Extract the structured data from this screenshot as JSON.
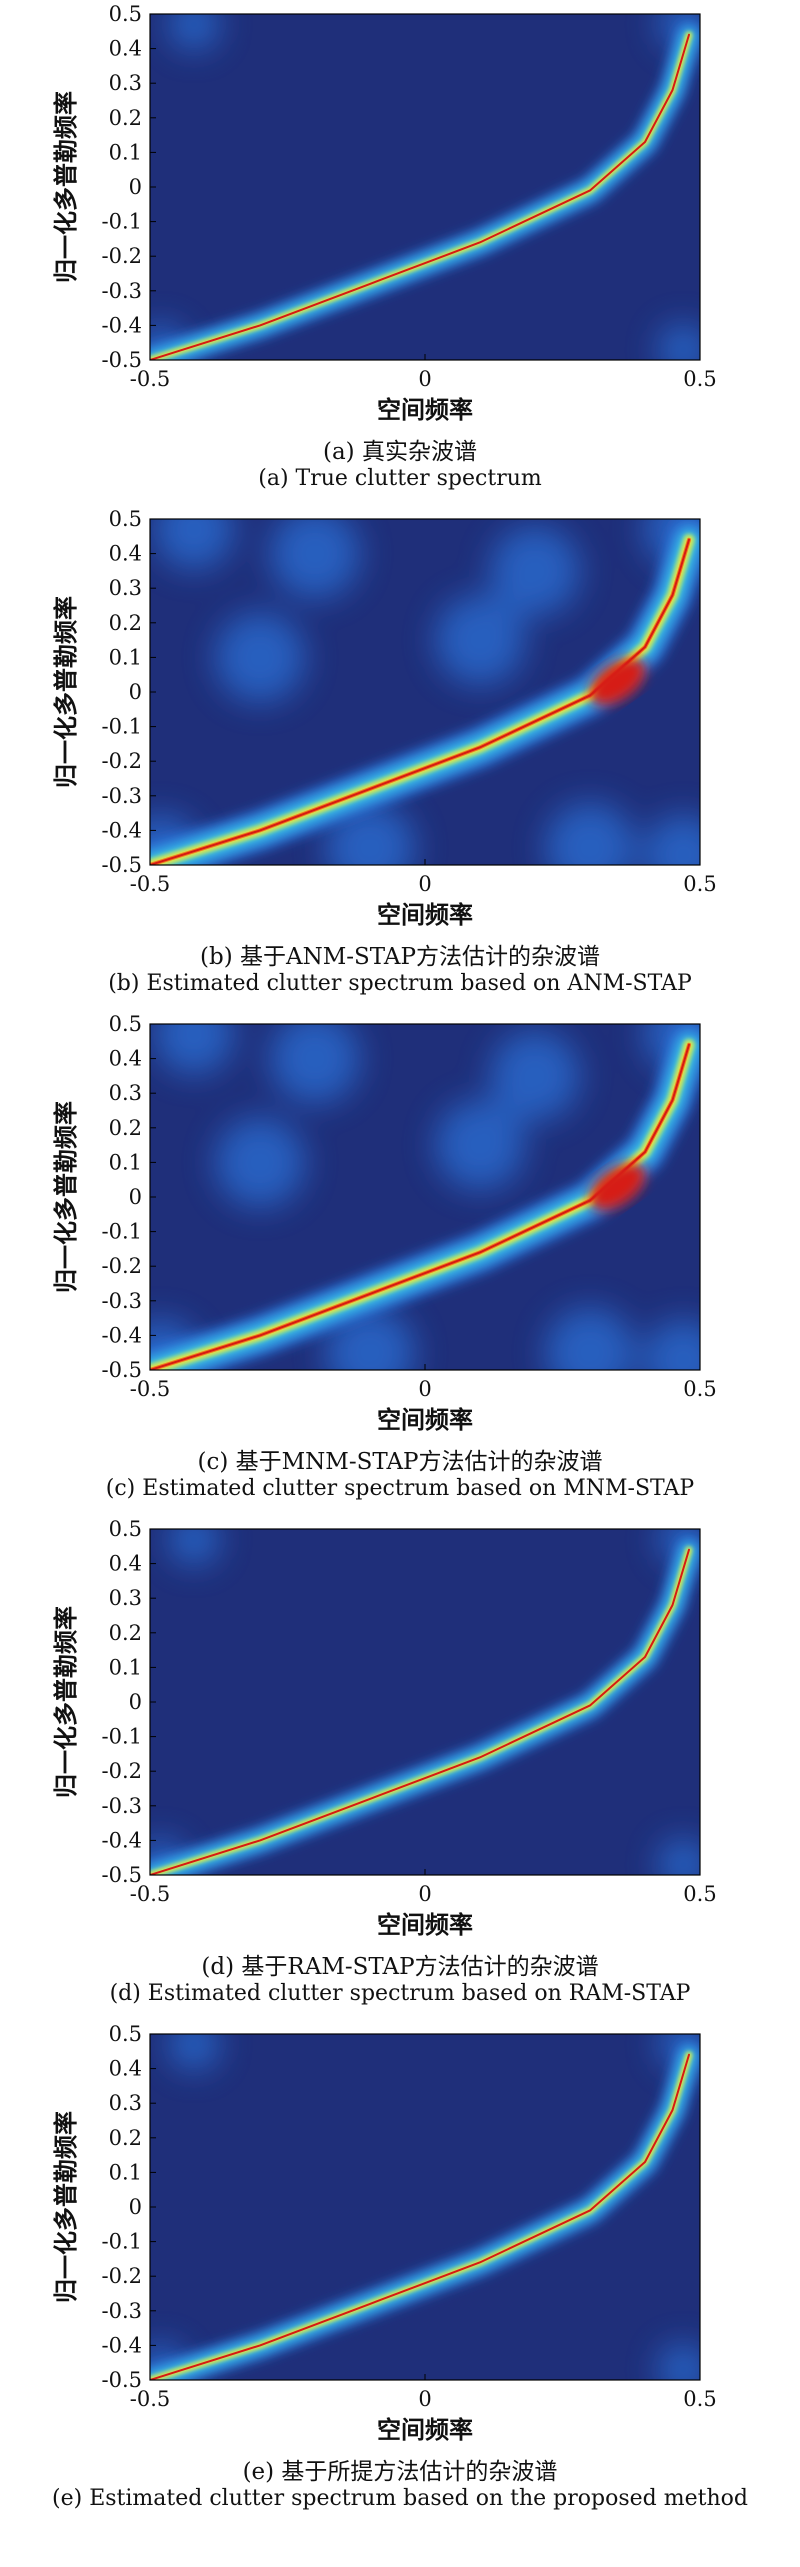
{
  "chart_data": [
    {
      "type": "heatmap",
      "panel_id": "a",
      "xlabel": "空间频率",
      "ylabel": "归一化多普勒频率",
      "xlim": [
        -0.5,
        0.5
      ],
      "ylim": [
        -0.5,
        0.5
      ],
      "x_ticks": [
        "-0.5",
        "0",
        "0.5"
      ],
      "y_ticks": [
        "0.5",
        "0.4",
        "0.3",
        "0.2",
        "0.1",
        "0",
        "-0.1",
        "-0.2",
        "-0.3",
        "-0.4",
        "-0.5"
      ],
      "caption_cn": "(a) 真实杂波谱",
      "caption_en": "(a) True clutter spectrum",
      "colormap": [
        "#1f2f7a",
        "#2a6fd6",
        "#39c6e8",
        "#8fe08a",
        "#f2e23c",
        "#f07a1e",
        "#d61a12"
      ],
      "ridge": [
        [
          -0.5,
          -0.5
        ],
        [
          -0.3,
          -0.4
        ],
        [
          -0.1,
          -0.28
        ],
        [
          0.1,
          -0.16
        ],
        [
          0.3,
          -0.01
        ],
        [
          0.4,
          0.13
        ],
        [
          0.45,
          0.28
        ],
        [
          0.48,
          0.44
        ]
      ],
      "ridge_intensity": "narrow"
    },
    {
      "type": "heatmap",
      "panel_id": "b",
      "xlabel": "空间频率",
      "ylabel": "归一化多普勒频率",
      "xlim": [
        -0.5,
        0.5
      ],
      "ylim": [
        -0.5,
        0.5
      ],
      "x_ticks": [
        "-0.5",
        "0",
        "0.5"
      ],
      "y_ticks": [
        "0.5",
        "0.4",
        "0.3",
        "0.2",
        "0.1",
        "0",
        "-0.1",
        "-0.2",
        "-0.3",
        "-0.4",
        "-0.5"
      ],
      "caption_cn": "(b) 基于ANM-STAP方法估计的杂波谱",
      "caption_en": "(b) Estimated clutter spectrum based on ANM-STAP",
      "colormap": [
        "#1f2f7a",
        "#2a6fd6",
        "#39c6e8",
        "#8fe08a",
        "#f2e23c",
        "#f07a1e",
        "#d61a12"
      ],
      "ridge": [
        [
          -0.5,
          -0.5
        ],
        [
          -0.3,
          -0.4
        ],
        [
          -0.1,
          -0.28
        ],
        [
          0.1,
          -0.16
        ],
        [
          0.3,
          -0.01
        ],
        [
          0.4,
          0.13
        ],
        [
          0.45,
          0.28
        ],
        [
          0.48,
          0.44
        ]
      ],
      "ridge_intensity": "wide-hotspot"
    },
    {
      "type": "heatmap",
      "panel_id": "c",
      "xlabel": "空间频率",
      "ylabel": "归一化多普勒频率",
      "xlim": [
        -0.5,
        0.5
      ],
      "ylim": [
        -0.5,
        0.5
      ],
      "x_ticks": [
        "-0.5",
        "0",
        "0.5"
      ],
      "y_ticks": [
        "0.5",
        "0.4",
        "0.3",
        "0.2",
        "0.1",
        "0",
        "-0.1",
        "-0.2",
        "-0.3",
        "-0.4",
        "-0.5"
      ],
      "caption_cn": "(c) 基于MNM-STAP方法估计的杂波谱",
      "caption_en": "(c) Estimated clutter spectrum based on MNM-STAP",
      "colormap": [
        "#1f2f7a",
        "#2a6fd6",
        "#39c6e8",
        "#8fe08a",
        "#f2e23c",
        "#f07a1e",
        "#d61a12"
      ],
      "ridge": [
        [
          -0.5,
          -0.5
        ],
        [
          -0.3,
          -0.4
        ],
        [
          -0.1,
          -0.28
        ],
        [
          0.1,
          -0.16
        ],
        [
          0.3,
          -0.01
        ],
        [
          0.4,
          0.13
        ],
        [
          0.45,
          0.28
        ],
        [
          0.48,
          0.44
        ]
      ],
      "ridge_intensity": "wide-hotspot"
    },
    {
      "type": "heatmap",
      "panel_id": "d",
      "xlabel": "空间频率",
      "ylabel": "归一化多普勒频率",
      "xlim": [
        -0.5,
        0.5
      ],
      "ylim": [
        -0.5,
        0.5
      ],
      "x_ticks": [
        "-0.5",
        "0",
        "0.5"
      ],
      "y_ticks": [
        "0.5",
        "0.4",
        "0.3",
        "0.2",
        "0.1",
        "0",
        "-0.1",
        "-0.2",
        "-0.3",
        "-0.4",
        "-0.5"
      ],
      "caption_cn": "(d) 基于RAM-STAP方法估计的杂波谱",
      "caption_en": "(d) Estimated clutter spectrum based on RAM-STAP",
      "colormap": [
        "#1f2f7a",
        "#2a6fd6",
        "#39c6e8",
        "#8fe08a",
        "#f2e23c",
        "#f07a1e",
        "#d61a12"
      ],
      "ridge": [
        [
          -0.5,
          -0.5
        ],
        [
          -0.3,
          -0.4
        ],
        [
          -0.1,
          -0.28
        ],
        [
          0.1,
          -0.16
        ],
        [
          0.3,
          -0.01
        ],
        [
          0.4,
          0.13
        ],
        [
          0.45,
          0.28
        ],
        [
          0.48,
          0.44
        ]
      ],
      "ridge_intensity": "narrow"
    },
    {
      "type": "heatmap",
      "panel_id": "e",
      "xlabel": "空间频率",
      "ylabel": "归一化多普勒频率",
      "xlim": [
        -0.5,
        0.5
      ],
      "ylim": [
        -0.5,
        0.5
      ],
      "x_ticks": [
        "-0.5",
        "0",
        "0.5"
      ],
      "y_ticks": [
        "0.5",
        "0.4",
        "0.3",
        "0.2",
        "0.1",
        "0",
        "-0.1",
        "-0.2",
        "-0.3",
        "-0.4",
        "-0.5"
      ],
      "caption_cn": "(e) 基于所提方法估计的杂波谱",
      "caption_en": "(e) Estimated clutter spectrum based on the proposed method",
      "colormap": [
        "#1f2f7a",
        "#2a6fd6",
        "#39c6e8",
        "#8fe08a",
        "#f2e23c",
        "#f07a1e",
        "#d61a12"
      ],
      "ridge": [
        [
          -0.5,
          -0.5
        ],
        [
          -0.3,
          -0.4
        ],
        [
          -0.1,
          -0.28
        ],
        [
          0.1,
          -0.16
        ],
        [
          0.3,
          -0.01
        ],
        [
          0.4,
          0.13
        ],
        [
          0.45,
          0.28
        ],
        [
          0.48,
          0.44
        ]
      ],
      "ridge_intensity": "narrow"
    }
  ]
}
